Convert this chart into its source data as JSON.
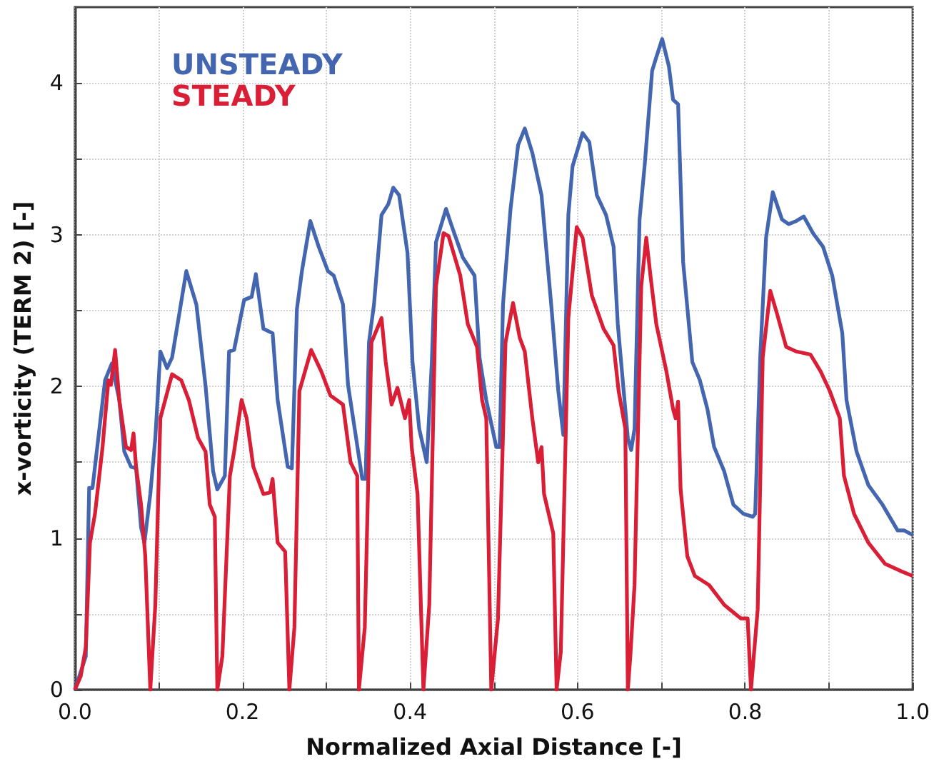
{
  "chart_data": {
    "type": "line",
    "xlabel": "Normalized Axial Distance [-]",
    "ylabel": "x-vorticity (TERM 2) [-]",
    "xlim": [
      0,
      1
    ],
    "ylim": [
      0,
      4.5
    ],
    "xticks": [
      {
        "value": 0,
        "label": "0.0"
      },
      {
        "value": 0.1,
        "label": null
      },
      {
        "value": 0.2,
        "label": "0.2"
      },
      {
        "value": 0.3,
        "label": null
      },
      {
        "value": 0.4,
        "label": "0.4"
      },
      {
        "value": 0.5,
        "label": null
      },
      {
        "value": 0.6,
        "label": "0.6"
      },
      {
        "value": 0.7,
        "label": null
      },
      {
        "value": 0.8,
        "label": "0.8"
      },
      {
        "value": 0.9,
        "label": null
      },
      {
        "value": 1,
        "label": "1.0"
      }
    ],
    "yticks": [
      0,
      {
        "value": 0.5,
        "label": null
      },
      1,
      {
        "value": 1.5,
        "label": null
      },
      2,
      {
        "value": 2.5,
        "label": null
      },
      3,
      {
        "value": 3.5,
        "label": null
      },
      4
    ],
    "grid": true,
    "legend": "top left",
    "marker": "none",
    "line_style": "solid",
    "series": [
      {
        "name": "UNSTEADY",
        "color": "#4466b0",
        "x": [
          0,
          0.013,
          0.017,
          0.021,
          0.036,
          0.044,
          0.053,
          0.059,
          0.067,
          0.073,
          0.079,
          0.083,
          0.09,
          0.096,
          0.102,
          0.11,
          0.116,
          0.133,
          0.145,
          0.156,
          0.165,
          0.17,
          0.179,
          0.184,
          0.19,
          0.202,
          0.211,
          0.216,
          0.225,
          0.236,
          0.242,
          0.254,
          0.259,
          0.265,
          0.271,
          0.281,
          0.291,
          0.302,
          0.309,
          0.32,
          0.326,
          0.334,
          0.343,
          0.347,
          0.351,
          0.357,
          0.366,
          0.374,
          0.38,
          0.387,
          0.397,
          0.403,
          0.411,
          0.42,
          0.426,
          0.431,
          0.443,
          0.449,
          0.463,
          0.477,
          0.483,
          0.491,
          0.503,
          0.507,
          0.511,
          0.52,
          0.529,
          0.537,
          0.546,
          0.557,
          0.569,
          0.577,
          0.583,
          0.589,
          0.594,
          0.606,
          0.614,
          0.623,
          0.634,
          0.643,
          0.648,
          0.66,
          0.664,
          0.668,
          0.674,
          0.68,
          0.689,
          0.694,
          0.701,
          0.709,
          0.714,
          0.72,
          0.726,
          0.737,
          0.746,
          0.755,
          0.763,
          0.775,
          0.786,
          0.798,
          0.809,
          0.812,
          0.818,
          0.825,
          0.833,
          0.844,
          0.852,
          0.861,
          0.87,
          0.881,
          0.893,
          0.904,
          0.916,
          0.921,
          0.933,
          0.947,
          0.964,
          0.982,
          0.99,
          1.0
        ],
        "values": [
          0,
          0.22,
          1.33,
          1.33,
          2.04,
          2.15,
          1.91,
          1.57,
          1.47,
          1.46,
          1.07,
          0.97,
          1.29,
          1.66,
          2.23,
          2.12,
          2.19,
          2.76,
          2.54,
          2.0,
          1.44,
          1.32,
          1.41,
          2.23,
          2.24,
          2.57,
          2.59,
          2.74,
          2.38,
          2.35,
          1.91,
          1.47,
          1.46,
          2.51,
          2.76,
          3.09,
          2.92,
          2.76,
          2.73,
          2.54,
          2.01,
          1.72,
          1.39,
          1.39,
          2.29,
          2.54,
          3.13,
          3.2,
          3.31,
          3.26,
          2.88,
          2.16,
          1.72,
          1.5,
          2.16,
          2.95,
          3.17,
          3.07,
          2.85,
          2.73,
          2.19,
          1.91,
          1.6,
          1.6,
          2.54,
          3.17,
          3.59,
          3.7,
          3.54,
          3.26,
          2.51,
          1.97,
          1.68,
          3.13,
          3.45,
          3.67,
          3.61,
          3.26,
          3.13,
          2.92,
          2.41,
          1.66,
          1.58,
          1.72,
          3.1,
          3.45,
          4.08,
          4.17,
          4.29,
          4.11,
          3.89,
          3.86,
          2.82,
          2.16,
          2.04,
          1.85,
          1.6,
          1.44,
          1.22,
          1.16,
          1.14,
          1.16,
          2.19,
          2.98,
          3.28,
          3.1,
          3.07,
          3.09,
          3.12,
          3.01,
          2.92,
          2.73,
          2.35,
          1.91,
          1.57,
          1.35,
          1.22,
          1.05,
          1.05,
          1.02
        ]
      },
      {
        "name": "STEADY",
        "color": "#d91e36",
        "x": [
          0,
          0.007,
          0.013,
          0.018,
          0.024,
          0.033,
          0.04,
          0.043,
          0.048,
          0.053,
          0.061,
          0.067,
          0.07,
          0.073,
          0.079,
          0.084,
          0.09,
          0.096,
          0.102,
          0.116,
          0.127,
          0.136,
          0.147,
          0.156,
          0.161,
          0.167,
          0.17,
          0.176,
          0.185,
          0.19,
          0.199,
          0.205,
          0.213,
          0.225,
          0.233,
          0.236,
          0.242,
          0.251,
          0.256,
          0.262,
          0.268,
          0.282,
          0.294,
          0.305,
          0.32,
          0.329,
          0.337,
          0.339,
          0.346,
          0.354,
          0.366,
          0.371,
          0.378,
          0.385,
          0.394,
          0.399,
          0.402,
          0.409,
          0.416,
          0.423,
          0.431,
          0.44,
          0.446,
          0.46,
          0.469,
          0.48,
          0.486,
          0.491,
          0.497,
          0.505,
          0.514,
          0.523,
          0.531,
          0.537,
          0.546,
          0.553,
          0.557,
          0.56,
          0.571,
          0.575,
          0.58,
          0.589,
          0.599,
          0.606,
          0.617,
          0.631,
          0.643,
          0.649,
          0.657,
          0.66,
          0.663,
          0.668,
          0.671,
          0.676,
          0.682,
          0.687,
          0.694,
          0.706,
          0.714,
          0.717,
          0.72,
          0.723,
          0.731,
          0.74,
          0.757,
          0.775,
          0.795,
          0.803,
          0.807,
          0.815,
          0.821,
          0.83,
          0.838,
          0.849,
          0.861,
          0.878,
          0.89,
          0.901,
          0.913,
          0.918,
          0.93,
          0.947,
          0.967,
          0.987,
          1.0
        ],
        "values": [
          0,
          0.09,
          0.28,
          0.97,
          1.16,
          1.6,
          2.04,
          2.01,
          2.24,
          1.91,
          1.6,
          1.58,
          1.69,
          1.47,
          1.22,
          0.88,
          0,
          0.56,
          1.79,
          2.08,
          2.04,
          1.91,
          1.66,
          1.57,
          1.22,
          1.14,
          0,
          0.22,
          1.41,
          1.57,
          1.91,
          1.79,
          1.47,
          1.29,
          1.3,
          1.39,
          0.97,
          0.91,
          0,
          0.41,
          1.97,
          2.24,
          2.1,
          1.94,
          1.88,
          1.5,
          1.41,
          0,
          0.41,
          2.29,
          2.45,
          2.16,
          1.88,
          1.99,
          1.79,
          1.91,
          1.6,
          1.29,
          0,
          0.56,
          2.66,
          3.01,
          2.99,
          2.73,
          2.41,
          2.26,
          1.91,
          1.79,
          0,
          0.47,
          2.29,
          2.55,
          2.32,
          2.23,
          1.79,
          1.5,
          1.6,
          1.29,
          1.03,
          0,
          0.25,
          2.45,
          3.05,
          2.98,
          2.6,
          2.38,
          2.27,
          1.97,
          1.72,
          0,
          0.22,
          0.69,
          1.44,
          2.66,
          2.98,
          2.73,
          2.41,
          2.1,
          1.85,
          1.79,
          1.9,
          1.32,
          0.88,
          0.75,
          0.69,
          0.56,
          0.47,
          0.47,
          0,
          0.53,
          2.19,
          2.63,
          2.48,
          2.26,
          2.23,
          2.21,
          2.1,
          1.97,
          1.79,
          1.41,
          1.16,
          0.97,
          0.83,
          0.78,
          0.75
        ]
      }
    ]
  }
}
